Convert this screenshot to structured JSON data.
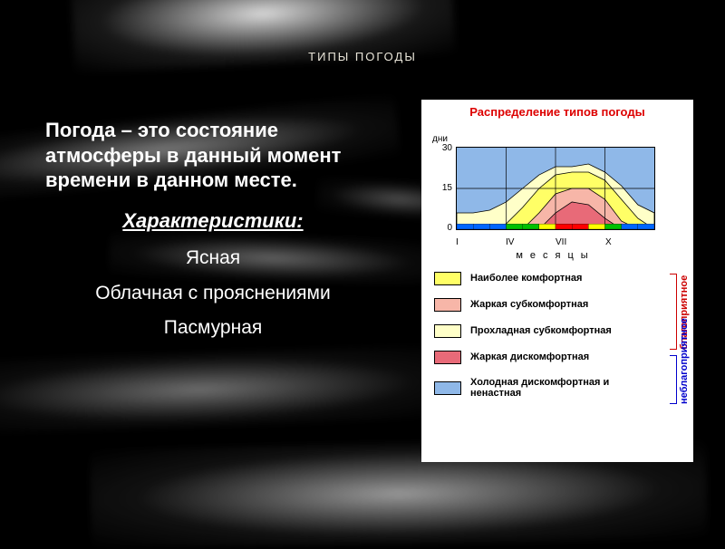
{
  "slide": {
    "title": "ТИПЫ ПОГОДЫ",
    "definition": "Погода – это состояние атмосферы в данный момент времени в данном месте.",
    "characteristics_heading": "Характеристики:",
    "characteristics": [
      "Ясная",
      "Облачная с прояснениями",
      "Пасмурная"
    ]
  },
  "figure": {
    "title": "Распределение типов погоды",
    "type": "area-stacked",
    "y_unit": "дни",
    "y_ticks": [
      "30",
      "15",
      "0"
    ],
    "ylim": [
      0,
      30
    ],
    "x_ticks": [
      "I",
      "IV",
      "VII",
      "X"
    ],
    "x_axis_title": "месяцы",
    "background_color": "#ffffff",
    "grid_color": "#000000",
    "areas": {
      "cold_discomfort": {
        "color": "#8fb8e8",
        "y": [
          30,
          30,
          30,
          30,
          30,
          30,
          30,
          30,
          30,
          30,
          30,
          30,
          30
        ]
      },
      "cool_subcomfort": {
        "color": "#ffffc8",
        "y": [
          6,
          6,
          7,
          10,
          15,
          20,
          23,
          23,
          24,
          21,
          16,
          9,
          6
        ]
      },
      "most_comfortable": {
        "color": "#ffff66",
        "y": [
          0,
          0,
          0,
          2,
          8,
          15,
          20,
          21,
          21,
          18,
          11,
          4,
          0
        ]
      },
      "hot_subcomfort": {
        "color": "#f7b6a8",
        "y": [
          0,
          0,
          0,
          0,
          0,
          6,
          13,
          15,
          15,
          11,
          3,
          0,
          0
        ]
      },
      "hot_discomfort": {
        "color": "#e86a78",
        "y": [
          0,
          0,
          0,
          0,
          0,
          0,
          6,
          10,
          9,
          4,
          0,
          0,
          0
        ]
      }
    },
    "month_bar_colors": [
      "#0066ff",
      "#0066ff",
      "#0066ff",
      "#00c000",
      "#00c000",
      "#ffff00",
      "#ff0000",
      "#ff0000",
      "#ffff00",
      "#00c000",
      "#0066ff",
      "#0066ff"
    ],
    "legend": [
      {
        "label": "Наиболее комфортная",
        "color": "#ffff66"
      },
      {
        "label": "Жаркая субкомфортная",
        "color": "#f7b6a8"
      },
      {
        "label": "Прохладная субкомфортная",
        "color": "#ffffc8"
      },
      {
        "label": "Жаркая дискомфортная",
        "color": "#e86a78"
      },
      {
        "label": "Холодная дискомфортная и ненастная",
        "color": "#8fb8e8"
      }
    ],
    "side_groups": [
      {
        "label": "благоприятное",
        "color": "#cc0000",
        "from": 0,
        "to": 3
      },
      {
        "label": "неблагоприятное",
        "color": "#0000cc",
        "from": 3,
        "to": 5
      }
    ]
  }
}
